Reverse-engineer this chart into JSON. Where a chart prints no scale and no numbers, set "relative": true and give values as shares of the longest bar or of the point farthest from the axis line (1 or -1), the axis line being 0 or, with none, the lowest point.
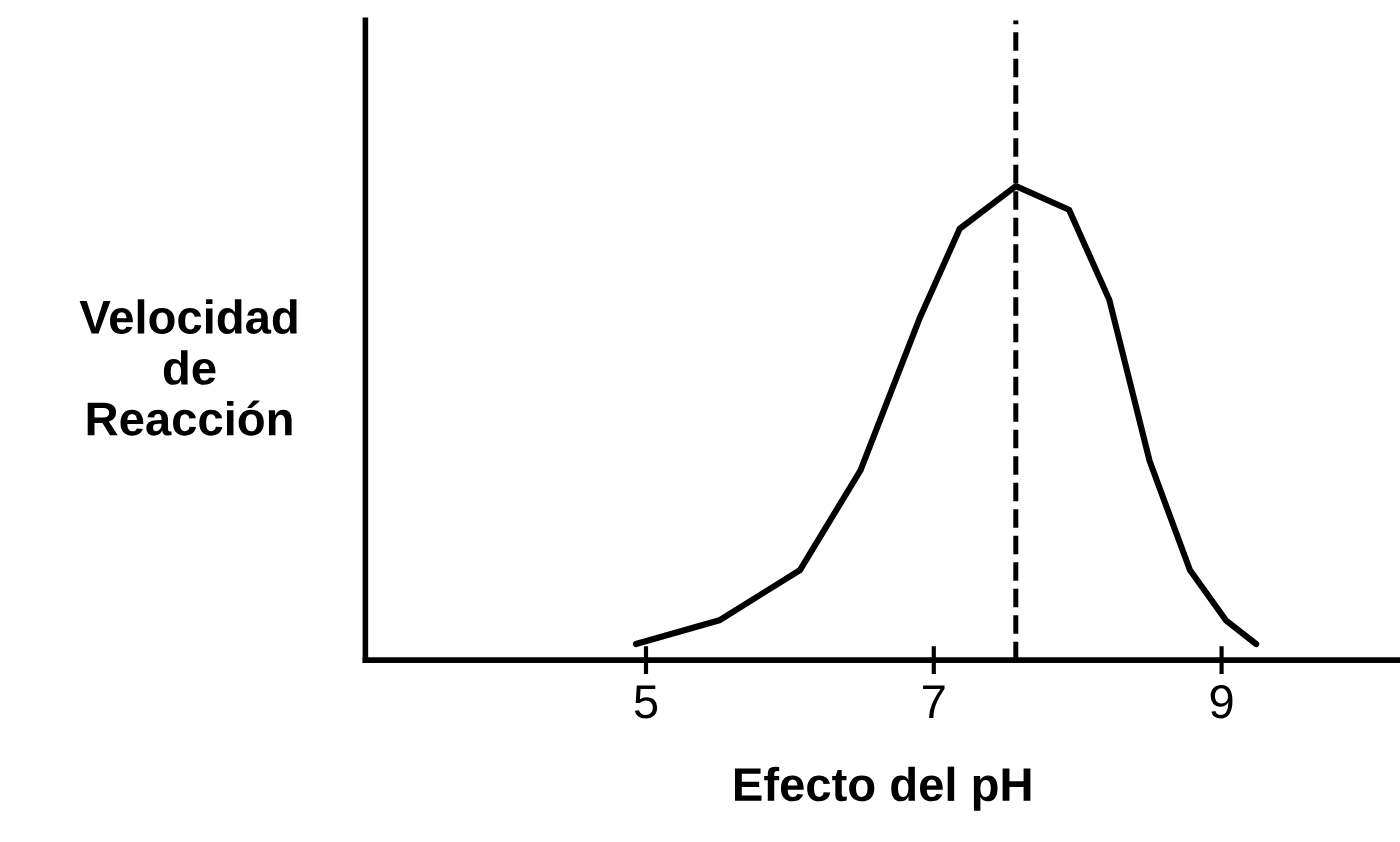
{
  "chart_data": {
    "type": "line",
    "relative": true,
    "xlabel": "Efecto del pH",
    "ylabel": "Velocidad\nde\nReacción",
    "xlim": [
      3.05,
      10.24
    ],
    "xticks": [
      5,
      7,
      9
    ],
    "series": [
      {
        "color": "#000000",
        "x": [
          4.93,
          5.51,
          6.07,
          6.49,
          6.9,
          7.18,
          7.57,
          7.94,
          8.22,
          8.5,
          8.78,
          9.03,
          9.24
        ],
        "values": [
          0.034,
          0.084,
          0.19,
          0.4,
          0.72,
          0.91,
          1.0,
          0.95,
          0.76,
          0.42,
          0.19,
          0.084,
          0.034
        ]
      }
    ],
    "ref_lines": [
      {
        "axis": "x",
        "value": 7.57,
        "color": "#000000",
        "line_style": "dashed"
      }
    ],
    "grid": false,
    "legend": false,
    "marker": "none",
    "line_style": "solid"
  }
}
